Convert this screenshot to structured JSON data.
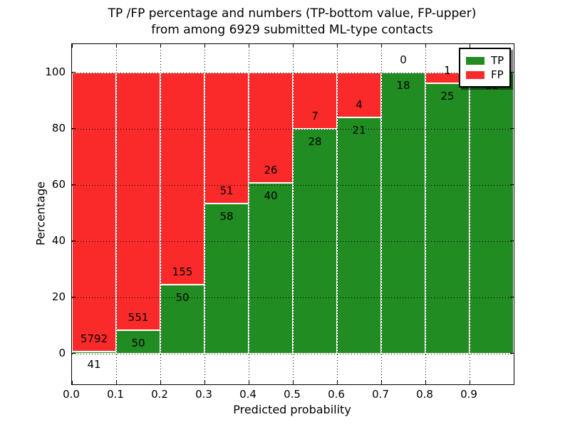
{
  "title": {
    "line1": "TP /FP percentage and numbers (TP-bottom value, FP-upper)",
    "line2": "from among 6929 submitted ML-type contacts"
  },
  "axes": {
    "xlabel": "Predicted probability",
    "ylabel": "Percentage"
  },
  "legend": {
    "position": "upper right",
    "items": [
      {
        "label": "TP",
        "color": "#218c21"
      },
      {
        "label": "FP",
        "color": "#fb2a2a"
      }
    ]
  },
  "chart_data": {
    "type": "bar",
    "stacked": true,
    "normalized_to_percent": true,
    "title": "TP /FP percentage and numbers (TP-bottom value, FP-upper) from among 6929 submitted ML-type contacts",
    "xlabel": "Predicted probability",
    "ylabel": "Percentage",
    "total_contacts": 6929,
    "bin_edges": [
      0.0,
      0.1,
      0.2,
      0.3,
      0.4,
      0.5,
      0.6,
      0.7,
      0.8,
      0.9,
      1.0
    ],
    "series": [
      {
        "name": "TP",
        "color": "#218c21",
        "values": [
          41,
          50,
          50,
          58,
          40,
          28,
          21,
          18,
          25,
          11
        ]
      },
      {
        "name": "FP",
        "color": "#fb2a2a",
        "values": [
          5792,
          551,
          155,
          51,
          26,
          7,
          4,
          0,
          1,
          0
        ]
      }
    ],
    "tp_percent": [
      0.7,
      8.3,
      24.4,
      53.2,
      60.6,
      80.0,
      84.0,
      100.0,
      96.2,
      100.0
    ],
    "xticks": {
      "values": [
        0.0,
        0.1,
        0.2,
        0.3,
        0.4,
        0.5,
        0.6,
        0.7,
        0.8,
        0.9
      ],
      "labels": [
        "0.0",
        "0.1",
        "0.2",
        "0.3",
        "0.4",
        "0.5",
        "0.6",
        "0.7",
        "0.8",
        "0.9"
      ]
    },
    "yticks": [
      0,
      20,
      40,
      60,
      80,
      100
    ],
    "xlim": [
      0.0,
      1.0
    ],
    "ylim": [
      -11,
      110
    ],
    "grid": "dotted",
    "bar_edge_color": "#ffffff",
    "background": "#ffffff"
  }
}
